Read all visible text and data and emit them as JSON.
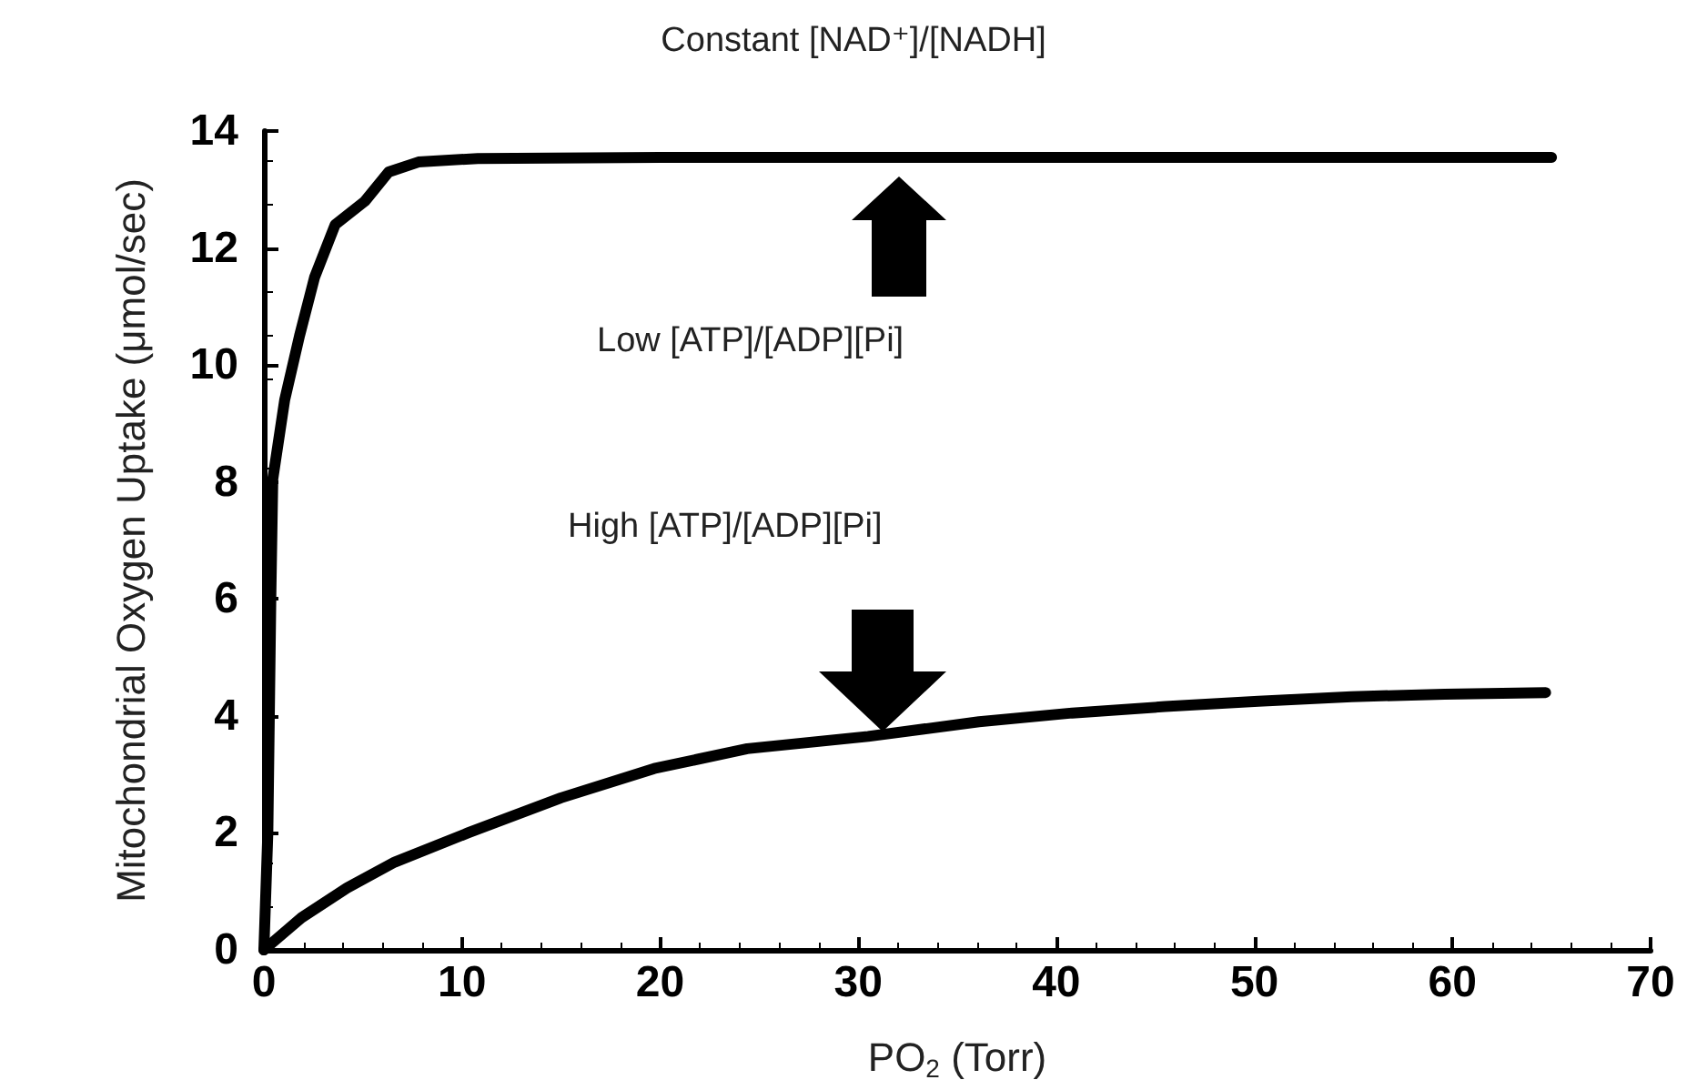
{
  "chart_data": {
    "type": "line",
    "title": "Constant [NAD⁺]/[NADH]",
    "xlabel": "PO$_{2}$ (Torr)",
    "ylabel": "Mitochondrial Oxygen Uptake (μmol/sec)",
    "series": [
      {
        "color": "#000000",
        "x": [
          0,
          0.2,
          0.35,
          0.45,
          1.05,
          1.8,
          2.56,
          3.6,
          5.1,
          6.3,
          7.8,
          10.8,
          20,
          40,
          65
        ],
        "values": [
          0,
          2,
          6,
          8.05,
          9.4,
          10.5,
          11.5,
          12.4,
          12.8,
          13.3,
          13.47,
          13.53,
          13.55,
          13.55,
          13.55
        ]
      },
      {
        "color": "#000000",
        "x": [
          0,
          1.9,
          4.2,
          6.6,
          10.3,
          15,
          19.7,
          24.4,
          30.5,
          36.1,
          40.8,
          45.5,
          50.2,
          54.9,
          59.6,
          64.7
        ],
        "values": [
          0,
          0.55,
          1.06,
          1.5,
          2.0,
          2.6,
          3.1,
          3.44,
          3.65,
          3.9,
          4.05,
          4.16,
          4.25,
          4.33,
          4.37,
          4.4
        ]
      }
    ],
    "annotations": [
      "Low [ATP]/[ADP][Pi]",
      "High [ATP]/[ADP][Pi]"
    ],
    "xlim": [
      0,
      70
    ],
    "xticks": [
      0,
      10,
      20,
      30,
      40,
      50,
      60,
      70
    ],
    "ylim": [
      0,
      14
    ],
    "yticks": [
      0,
      2,
      4,
      6,
      8,
      10,
      12,
      14
    ],
    "grid": false,
    "marker": "none",
    "line_style": "solid"
  }
}
